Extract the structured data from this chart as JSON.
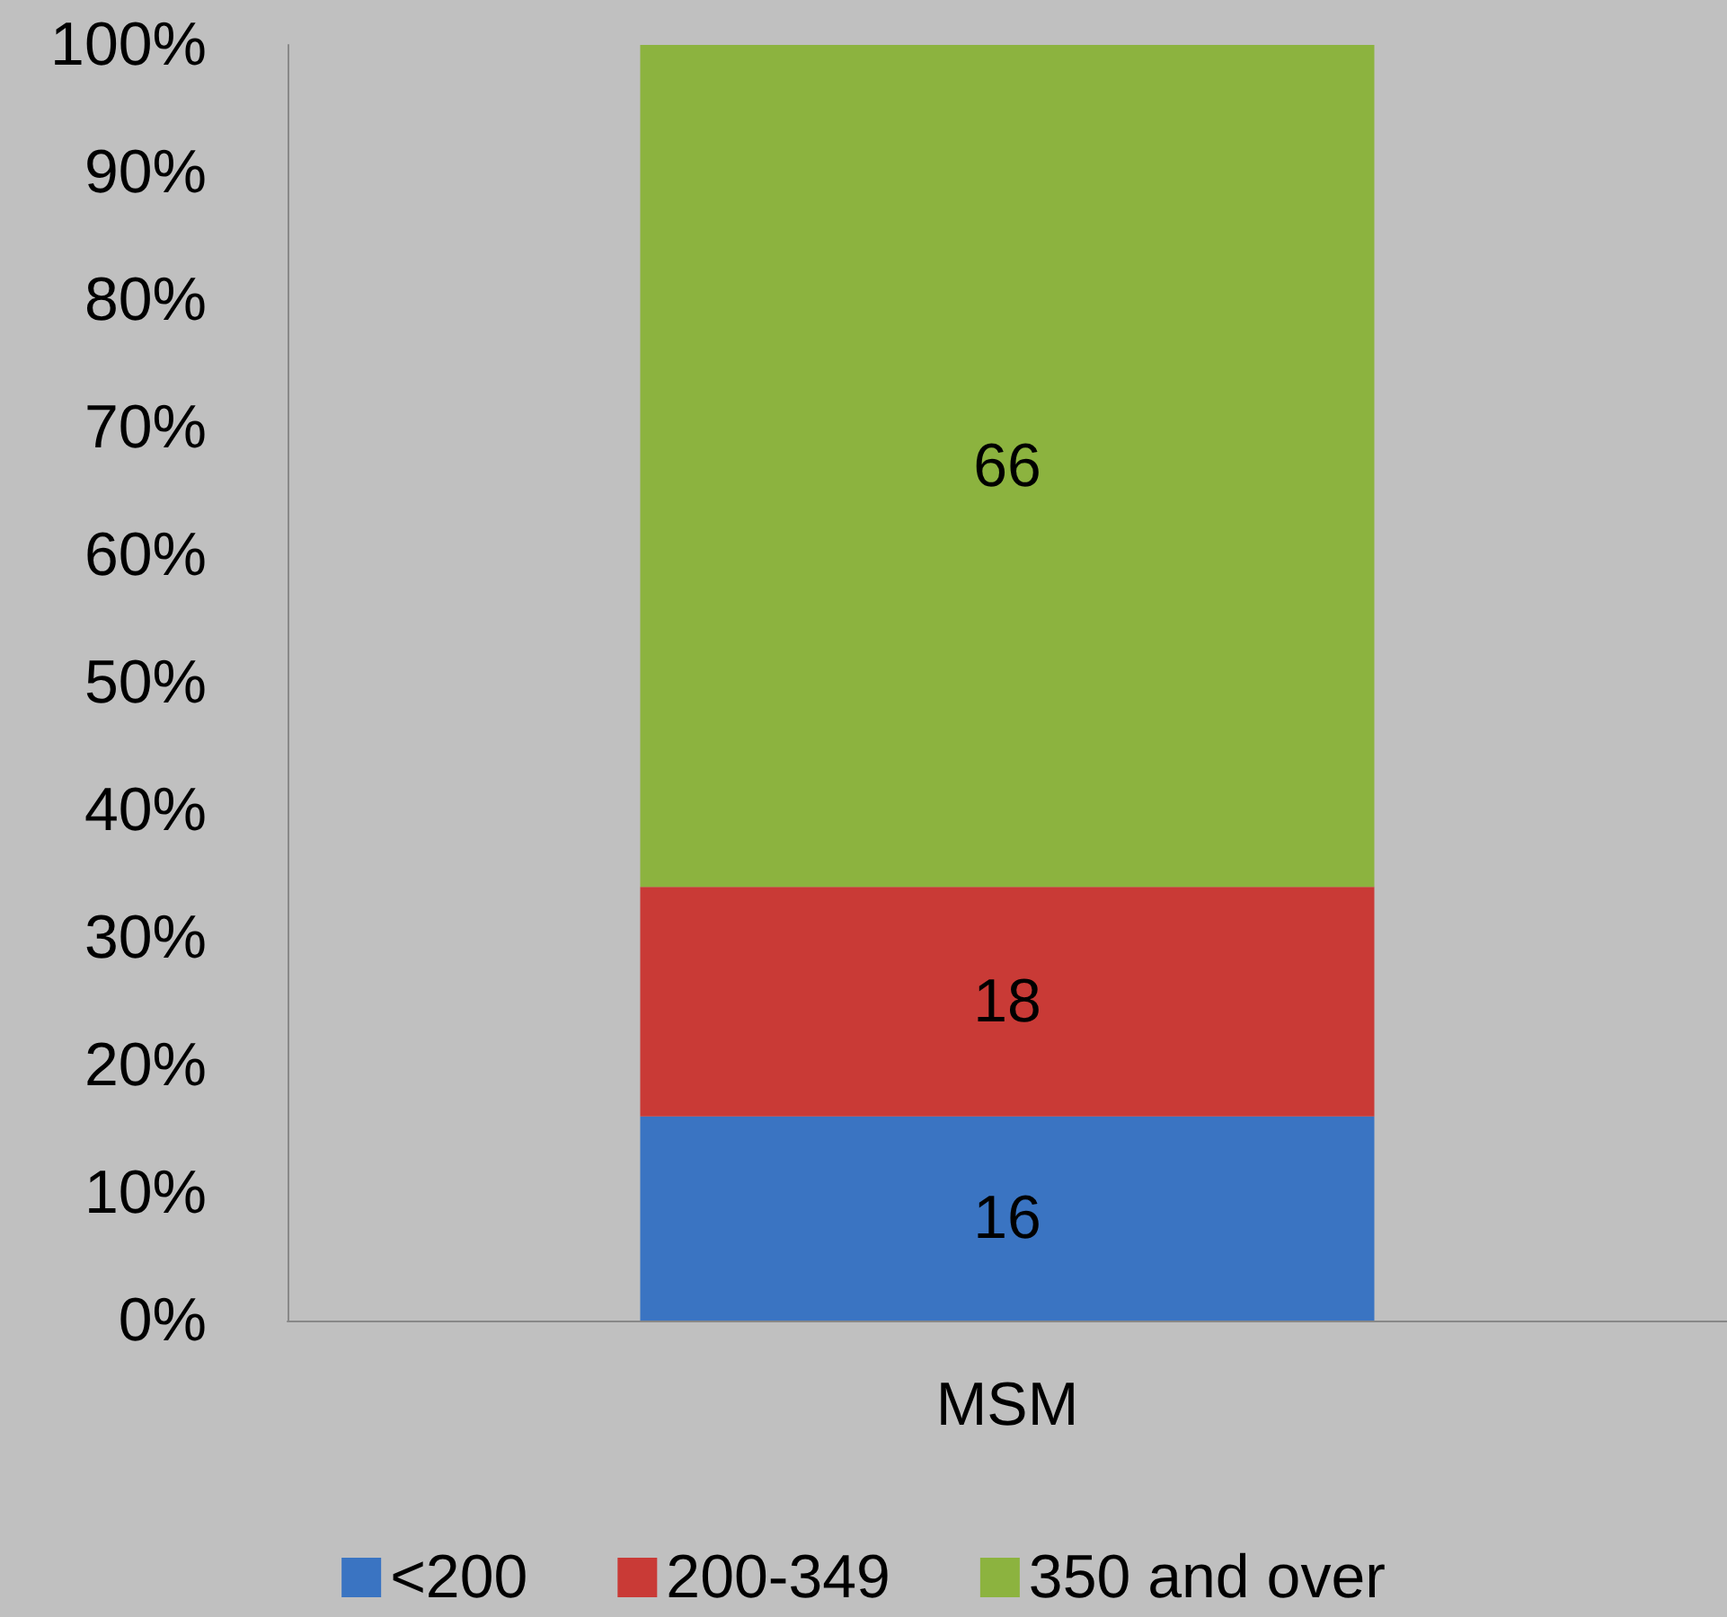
{
  "chart_data": {
    "type": "bar",
    "stacked": true,
    "categories": [
      "MSM"
    ],
    "series": [
      {
        "name": "<200",
        "color": "#3a74c2",
        "values": [
          16
        ]
      },
      {
        "name": "200-349",
        "color": "#c93a36",
        "values": [
          18
        ]
      },
      {
        "name": "350 and over",
        "color": "#8cb33f",
        "values": [
          66
        ]
      }
    ],
    "ylim": [
      0,
      100
    ],
    "yticks": [
      {
        "value": 0,
        "label": "0%"
      },
      {
        "value": 10,
        "label": "10%"
      },
      {
        "value": 20,
        "label": "20%"
      },
      {
        "value": 30,
        "label": "30%"
      },
      {
        "value": 40,
        "label": "40%"
      },
      {
        "value": 50,
        "label": "50%"
      },
      {
        "value": 60,
        "label": "60%"
      },
      {
        "value": 70,
        "label": "70%"
      },
      {
        "value": 80,
        "label": "80%"
      },
      {
        "value": 90,
        "label": "90%"
      },
      {
        "value": 100,
        "label": "100%"
      }
    ],
    "data_labels": true,
    "grid": false,
    "legend": "bottom"
  }
}
